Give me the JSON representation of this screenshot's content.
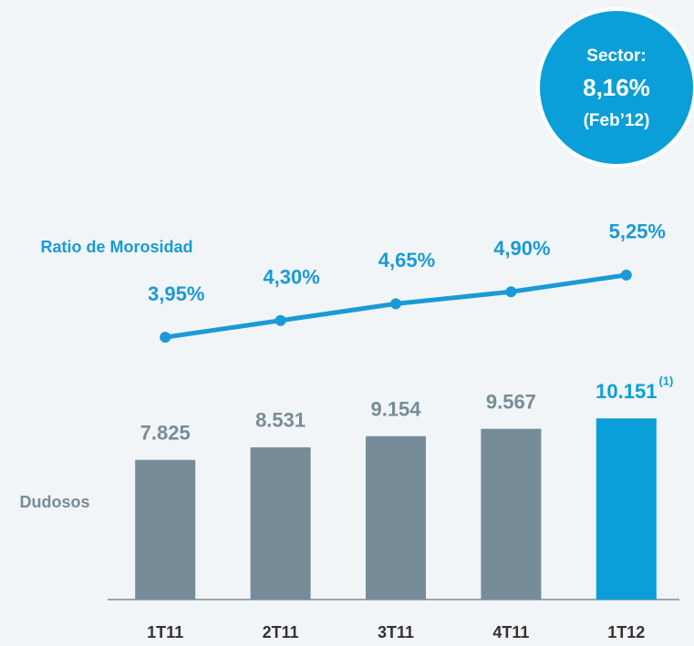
{
  "chart_data": {
    "type": "combo",
    "categories": [
      "1T11",
      "2T11",
      "3T11",
      "4T11",
      "1T12"
    ],
    "series": [
      {
        "name": "Dudosos",
        "type": "bar",
        "colors": [
          "#778c99",
          "#778c99",
          "#778c99",
          "#778c99",
          "#0a9fd8"
        ],
        "values": [
          7825,
          8531,
          9154,
          9567,
          10151
        ],
        "value_labels": [
          "7.825",
          "8.531",
          "9.154",
          "9.567",
          "10.151"
        ]
      },
      {
        "name": "Ratio de Morosidad",
        "type": "line",
        "axis": "y2",
        "color": "#1a9ad6",
        "values": [
          3.95,
          4.3,
          4.65,
          4.9,
          5.25
        ],
        "value_labels": [
          "3,95%",
          "4,30%",
          "4,65%",
          "4,90%",
          "5,25%"
        ]
      }
    ],
    "ylim": [
      0,
      12000
    ],
    "y2lim": [
      3,
      7
    ],
    "footnote": "(1)",
    "callout": {
      "lines": [
        "Sector:",
        "8,16%",
        "(Feb’12)"
      ]
    }
  }
}
